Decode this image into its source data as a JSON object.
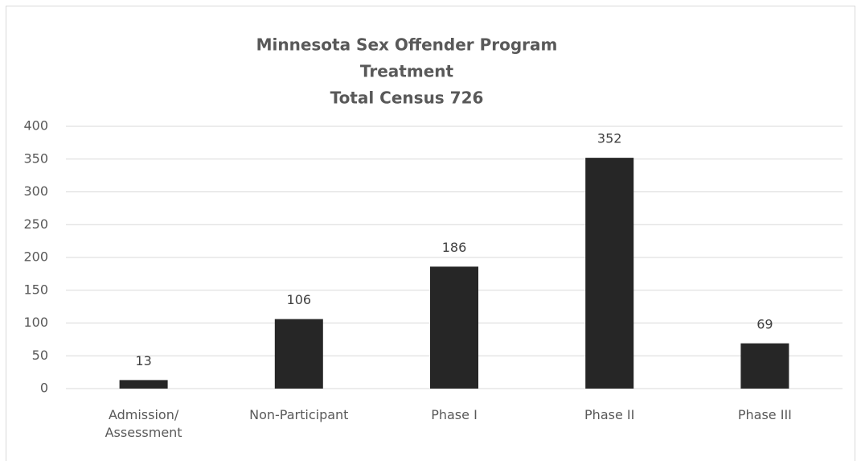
{
  "chart_data": {
    "type": "bar",
    "title": [
      "Minnesota Sex Offender Program",
      "Treatment",
      "Total Census 726"
    ],
    "categories": [
      "Admission/\nAssessment",
      "Non-Participant",
      "Phase I",
      "Phase II",
      "Phase III"
    ],
    "values": [
      13,
      106,
      186,
      352,
      69
    ],
    "color": "#262626",
    "ylim": [
      0,
      400
    ],
    "yticks": [
      0,
      50,
      100,
      150,
      200,
      250,
      300,
      350,
      400
    ],
    "grid": true
  }
}
